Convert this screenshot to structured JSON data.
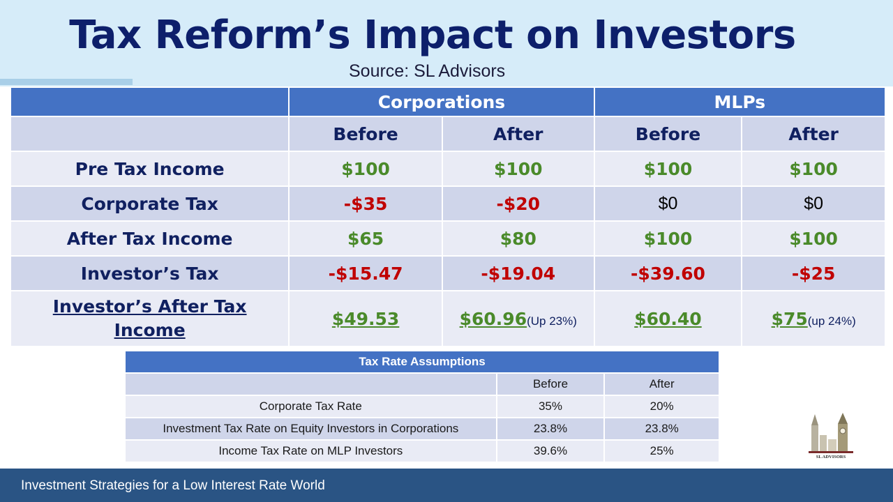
{
  "title": "Tax Reform’s Impact on Investors",
  "subtitle": "Source: SL Advisors",
  "main_table": {
    "groups": [
      "Corporations",
      "MLPs"
    ],
    "subheaders": [
      "Before",
      "After",
      "Before",
      "After"
    ],
    "rows": [
      {
        "label": "Pre Tax Income",
        "cells": [
          "$100",
          "$100",
          "$100",
          "$100"
        ]
      },
      {
        "label": "Corporate Tax",
        "cells": [
          "-$35",
          "-$20",
          "$0",
          "$0"
        ]
      },
      {
        "label": "After Tax Income",
        "cells": [
          "$65",
          "$80",
          "$100",
          "$100"
        ]
      },
      {
        "label": "Investor’s Tax",
        "cells": [
          "-$15.47",
          "-$19.04",
          "-$39.60",
          "-$25"
        ]
      }
    ],
    "final_row": {
      "label_line1": "Investor’s After Tax",
      "label_line2": "Income",
      "cells": [
        {
          "value": "$49.53",
          "note": ""
        },
        {
          "value": "$60.96",
          "note": "(Up  23%)"
        },
        {
          "value": "$60.40",
          "note": ""
        },
        {
          "value": "$75",
          "note": "(up 24%)"
        }
      ]
    }
  },
  "assumptions": {
    "title": "Tax Rate Assumptions",
    "columns": [
      "Before",
      "After"
    ],
    "rows": [
      {
        "label": "Corporate Tax Rate",
        "before": "35%",
        "after": "20%"
      },
      {
        "label": "Investment Tax Rate on Equity Investors in Corporations",
        "before": "23.8%",
        "after": "23.8%"
      },
      {
        "label": "Income Tax Rate on MLP Investors",
        "before": "39.6%",
        "after": "25%"
      }
    ]
  },
  "logo_text": "SL ADVISORS",
  "footer": "Investment Strategies for a Low Interest Rate World",
  "colors": {
    "header_blue": "#4472c4",
    "positive": "#4a8a2a",
    "negative": "#c00000",
    "footer": "#2a5484"
  }
}
